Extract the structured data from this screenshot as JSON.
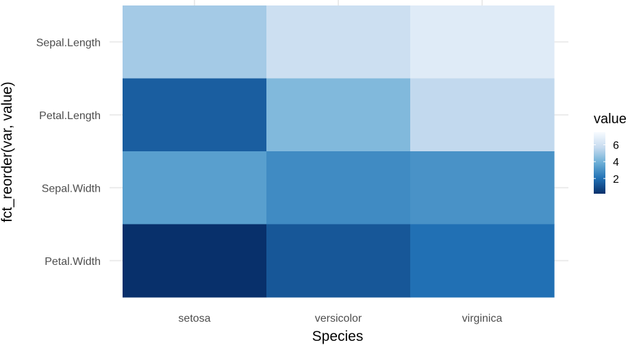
{
  "chart_data": {
    "type": "heatmap",
    "title": "",
    "xlabel": "Species",
    "ylabel": "fct_reorder(var, value)",
    "x_categories": [
      "setosa",
      "versicolor",
      "virginica"
    ],
    "y_categories": [
      "Sepal.Length",
      "Petal.Length",
      "Sepal.Width",
      "Petal.Width"
    ],
    "values": [
      [
        5.0,
        5.9,
        6.6
      ],
      [
        1.5,
        4.3,
        5.6
      ],
      [
        3.4,
        2.8,
        3.0
      ],
      [
        0.2,
        1.3,
        2.0
      ]
    ],
    "legend": {
      "title": "value",
      "ticks": [
        2,
        4,
        6
      ],
      "tick_labels": [
        "2",
        "4",
        "6"
      ],
      "range": [
        0.2,
        7.5
      ],
      "colors": [
        "#08306b",
        "#2171b5",
        "#6baed6",
        "#c6dbef",
        "#f7fbff"
      ],
      "placement": "right"
    },
    "grid": true
  }
}
